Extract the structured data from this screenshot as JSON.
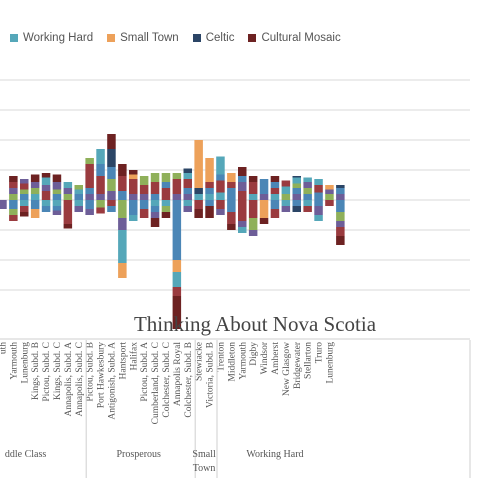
{
  "colors": {
    "blue": "#4b86b6",
    "teal": "#55a7b9",
    "green": "#8fb05a",
    "purple": "#6d5e98",
    "brown_red": "#9a3b3f",
    "dark_red": "#6d2222",
    "orange": "#eda15a",
    "navy": "#2b4566",
    "grid": "#d9d9d9",
    "text": "#555555"
  },
  "chart_data": {
    "type": "bar",
    "title": "Thinking About Nova Scotia",
    "legend": [
      {
        "name": "Working Hard",
        "color": "#55a7b9"
      },
      {
        "name": "Small Town",
        "color": "#eda15a"
      },
      {
        "name": "Celtic",
        "color": "#2b4566"
      },
      {
        "name": "Cultural Mosaic",
        "color": "#6d2222"
      }
    ],
    "legend_position": "top-left",
    "grid": true,
    "ylim": [
      -60,
      80
    ],
    "groups": [
      {
        "name": "ddle Class",
        "categories": [
          "uth",
          "Yarmouth",
          "Lunenburg",
          "Kings, Subd. B",
          "Pictou, Subd. C",
          "Kings, Subd. C",
          "Annapolis, Subd. A",
          "Annapolis, Subd. C"
        ]
      },
      {
        "name": "Prosperous",
        "categories": [
          "Pictou, Subd. B",
          "Port Hawkesbury",
          "Antigonish, Subd. A",
          "Hantsport",
          "Halifax",
          "Pictou, Subd. A",
          "Cumberland, Subd. C",
          "Colchester, Subd. C",
          "Annapolis Royal",
          "Colchester, Subd. B"
        ]
      },
      {
        "name": "Small Town",
        "categories": [
          "Stewiacke",
          "Victoria, Subd. B"
        ]
      },
      {
        "name": "Working Hard",
        "categories": [
          "Trenton",
          "Middleton",
          "Yarmouth",
          "Digby",
          "Windsor",
          "Amherst",
          "New Glasgow",
          "Bridgewater",
          "Stellarton",
          "Truro",
          "Lunenburg"
        ]
      }
    ],
    "bars": [
      {
        "pos": [],
        "neg": [
          [
            "purple",
            6
          ]
        ]
      },
      {
        "pos": [
          [
            "green",
            4
          ],
          [
            "purple",
            4
          ],
          [
            "brown_red",
            4
          ],
          [
            "dark_red",
            4
          ]
        ],
        "neg": [
          [
            "blue",
            6
          ],
          [
            "green",
            4
          ],
          [
            "brown_red",
            4
          ]
        ]
      },
      {
        "pos": [
          [
            "blue",
            4
          ],
          [
            "green",
            3
          ],
          [
            "brown_red",
            4
          ],
          [
            "purple",
            3
          ]
        ],
        "neg": [
          [
            "teal",
            4
          ],
          [
            "brown_red",
            4
          ],
          [
            "dark_red",
            3
          ]
        ]
      },
      {
        "pos": [
          [
            "teal",
            4
          ],
          [
            "green",
            4
          ],
          [
            "purple",
            4
          ],
          [
            "dark_red",
            5
          ]
        ],
        "neg": [
          [
            "blue",
            6
          ],
          [
            "orange",
            6
          ]
        ]
      },
      {
        "pos": [
          [
            "brown_red",
            6
          ],
          [
            "purple",
            4
          ],
          [
            "teal",
            5
          ],
          [
            "dark_red",
            3
          ]
        ],
        "neg": [
          [
            "teal",
            4
          ],
          [
            "blue",
            4
          ]
        ]
      },
      {
        "pos": [
          [
            "blue",
            4
          ],
          [
            "green",
            3
          ],
          [
            "purple",
            5
          ],
          [
            "dark_red",
            5
          ]
        ],
        "neg": [
          [
            "teal",
            4
          ],
          [
            "blue",
            3
          ],
          [
            "purple",
            3
          ]
        ]
      },
      {
        "pos": [
          [
            "green",
            4
          ],
          [
            "purple",
            4
          ],
          [
            "teal",
            4
          ]
        ],
        "neg": [
          [
            "brown_red",
            16
          ],
          [
            "dark_red",
            3
          ]
        ]
      },
      {
        "pos": [
          [
            "blue",
            4
          ],
          [
            "teal",
            3
          ],
          [
            "green",
            3
          ]
        ],
        "neg": [
          [
            "teal",
            4
          ],
          [
            "purple",
            4
          ]
        ]
      },
      {
        "pos": [
          [
            "purple",
            4
          ],
          [
            "blue",
            4
          ],
          [
            "brown_red",
            16
          ],
          [
            "green",
            4
          ]
        ],
        "neg": [
          [
            "blue",
            6
          ],
          [
            "purple",
            4
          ]
        ]
      },
      {
        "pos": [
          [
            "purple",
            4
          ],
          [
            "brown_red",
            12
          ],
          [
            "blue",
            8
          ],
          [
            "teal",
            10
          ]
        ],
        "neg": [
          [
            "green",
            5
          ],
          [
            "brown_red",
            4
          ]
        ]
      },
      {
        "pos": [
          [
            "purple",
            6
          ],
          [
            "green",
            8
          ],
          [
            "blue",
            8
          ],
          [
            "navy",
            12
          ],
          [
            "dark_red",
            10
          ]
        ],
        "neg": [
          [
            "brown_red",
            4
          ],
          [
            "blue",
            4
          ]
        ]
      },
      {
        "pos": [
          [
            "blue",
            6
          ],
          [
            "brown_red",
            10
          ],
          [
            "dark_red",
            8
          ]
        ],
        "neg": [
          [
            "green",
            12
          ],
          [
            "purple",
            8
          ],
          [
            "teal",
            22
          ],
          [
            "orange",
            10
          ]
        ]
      },
      {
        "pos": [
          [
            "purple",
            4
          ],
          [
            "brown_red",
            10
          ],
          [
            "orange",
            3
          ],
          [
            "dark_red",
            3
          ]
        ],
        "neg": [
          [
            "blue",
            10
          ],
          [
            "teal",
            4
          ]
        ]
      },
      {
        "pos": [
          [
            "purple",
            4
          ],
          [
            "brown_red",
            6
          ],
          [
            "green",
            6
          ]
        ],
        "neg": [
          [
            "blue",
            6
          ],
          [
            "brown_red",
            6
          ]
        ]
      },
      {
        "pos": [
          [
            "blue",
            4
          ],
          [
            "brown_red",
            8
          ],
          [
            "green",
            6
          ]
        ],
        "neg": [
          [
            "teal",
            4
          ],
          [
            "blue",
            4
          ],
          [
            "purple",
            4
          ],
          [
            "dark_red",
            6
          ]
        ]
      },
      {
        "pos": [
          [
            "brown_red",
            8
          ],
          [
            "blue",
            4
          ],
          [
            "green",
            6
          ]
        ],
        "neg": [
          [
            "teal",
            4
          ],
          [
            "green",
            4
          ],
          [
            "dark_red",
            4
          ]
        ]
      },
      {
        "pos": [
          [
            "purple",
            4
          ],
          [
            "brown_red",
            10
          ],
          [
            "green",
            4
          ]
        ],
        "neg": [
          [
            "blue",
            40
          ],
          [
            "orange",
            8
          ],
          [
            "teal",
            10
          ],
          [
            "brown_red",
            6
          ],
          [
            "dark_red",
            22
          ]
        ]
      },
      {
        "pos": [
          [
            "purple",
            4
          ],
          [
            "blue",
            4
          ],
          [
            "brown_red",
            6
          ],
          [
            "teal",
            4
          ],
          [
            "navy",
            3
          ]
        ],
        "neg": [
          [
            "teal",
            4
          ],
          [
            "purple",
            4
          ]
        ]
      },
      {
        "pos": [
          [
            "teal",
            4
          ],
          [
            "navy",
            4
          ],
          [
            "orange",
            32
          ]
        ],
        "neg": [
          [
            "brown_red",
            6
          ],
          [
            "dark_red",
            6
          ]
        ]
      },
      {
        "pos": [
          [
            "teal",
            4
          ],
          [
            "blue",
            4
          ],
          [
            "brown_red",
            4
          ],
          [
            "orange",
            16
          ]
        ],
        "neg": [
          [
            "blue",
            4
          ],
          [
            "dark_red",
            8
          ]
        ]
      },
      {
        "pos": [
          [
            "teal",
            5
          ],
          [
            "brown_red",
            8
          ],
          [
            "blue",
            4
          ],
          [
            "teal",
            12
          ]
        ],
        "neg": [
          [
            "brown_red",
            6
          ],
          [
            "purple",
            4
          ]
        ]
      },
      {
        "pos": [
          [
            "blue",
            8
          ],
          [
            "brown_red",
            4
          ],
          [
            "orange",
            6
          ]
        ],
        "neg": [
          [
            "blue",
            8
          ],
          [
            "brown_red",
            8
          ],
          [
            "dark_red",
            4
          ]
        ]
      },
      {
        "pos": [
          [
            "brown_red",
            6
          ],
          [
            "purple",
            6
          ],
          [
            "blue",
            4
          ],
          [
            "dark_red",
            6
          ]
        ],
        "neg": [
          [
            "brown_red",
            14
          ],
          [
            "purple",
            4
          ],
          [
            "teal",
            4
          ]
        ]
      },
      {
        "pos": [
          [
            "teal",
            4
          ],
          [
            "brown_red",
            8
          ],
          [
            "dark_red",
            4
          ]
        ],
        "neg": [
          [
            "brown_red",
            12
          ],
          [
            "green",
            8
          ],
          [
            "purple",
            4
          ]
        ]
      },
      {
        "pos": [
          [
            "purple",
            4
          ],
          [
            "blue",
            10
          ]
        ],
        "neg": [
          [
            "orange",
            12
          ],
          [
            "dark_red",
            4
          ]
        ]
      },
      {
        "pos": [
          [
            "teal",
            4
          ],
          [
            "brown_red",
            4
          ],
          [
            "blue",
            4
          ],
          [
            "dark_red",
            4
          ]
        ],
        "neg": [
          [
            "blue",
            6
          ],
          [
            "brown_red",
            6
          ]
        ]
      },
      {
        "pos": [
          [
            "green",
            4
          ],
          [
            "teal",
            5
          ],
          [
            "brown_red",
            4
          ]
        ],
        "neg": [
          [
            "teal",
            4
          ],
          [
            "purple",
            4
          ]
        ]
      },
      {
        "pos": [
          [
            "purple",
            4
          ],
          [
            "blue",
            4
          ],
          [
            "green",
            3
          ],
          [
            "teal",
            4
          ],
          [
            "navy",
            1
          ]
        ],
        "neg": [
          [
            "blue",
            4
          ],
          [
            "navy",
            4
          ]
        ]
      },
      {
        "pos": [
          [
            "blue",
            4
          ],
          [
            "green",
            4
          ],
          [
            "purple",
            4
          ],
          [
            "teal",
            3
          ]
        ],
        "neg": [
          [
            "teal",
            4
          ],
          [
            "brown_red",
            4
          ]
        ]
      },
      {
        "pos": [
          [
            "blue",
            5
          ],
          [
            "brown_red",
            5
          ],
          [
            "teal",
            4
          ]
        ],
        "neg": [
          [
            "blue",
            4
          ],
          [
            "purple",
            6
          ],
          [
            "teal",
            4
          ]
        ]
      },
      {
        "pos": [
          [
            "green",
            4
          ],
          [
            "purple",
            3
          ],
          [
            "orange",
            3
          ]
        ],
        "neg": [
          [
            "brown_red",
            4
          ]
        ]
      },
      {
        "pos": [
          [
            "purple",
            4
          ],
          [
            "blue",
            4
          ],
          [
            "navy",
            2
          ]
        ],
        "neg": [
          [
            "blue",
            8
          ],
          [
            "green",
            6
          ],
          [
            "purple",
            4
          ],
          [
            "brown_red",
            6
          ],
          [
            "dark_red",
            6
          ]
        ]
      }
    ]
  }
}
